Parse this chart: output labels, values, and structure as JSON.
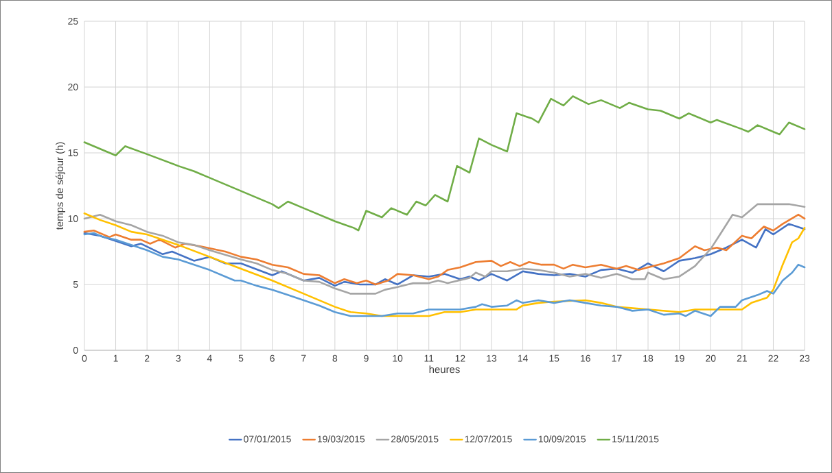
{
  "chart_data": {
    "type": "line",
    "xlabel": "heures",
    "ylabel": "temps de séjour (h)",
    "xlim": [
      0,
      23
    ],
    "ylim": [
      0,
      25
    ],
    "xticks": [
      0,
      1,
      2,
      3,
      4,
      5,
      6,
      7,
      8,
      9,
      10,
      11,
      12,
      13,
      14,
      15,
      16,
      17,
      18,
      19,
      20,
      21,
      22,
      23
    ],
    "yticks": [
      0,
      5,
      10,
      15,
      20,
      25
    ],
    "grid": true,
    "legend": "bottom",
    "line_style": "solid",
    "series": [
      {
        "name": "07/01/2015",
        "color": "#4472c4",
        "x": [
          0,
          0.5,
          1,
          1.5,
          1.8,
          2.5,
          2.8,
          3.3,
          3.5,
          4,
          4.5,
          5,
          6,
          6.3,
          7,
          7.5,
          8,
          8.3,
          8.8,
          9.3,
          9.6,
          10,
          10.5,
          11,
          11.5,
          12,
          12.3,
          12.6,
          13,
          13.5,
          14,
          14.5,
          15,
          15.5,
          16,
          16.5,
          17,
          17.5,
          18,
          18.5,
          19,
          19.5,
          20,
          20.5,
          21,
          21.45,
          21.75,
          22,
          22.5,
          23
        ],
        "values": [
          8.9,
          8.7,
          8.3,
          7.9,
          8.1,
          7.3,
          7.5,
          7.0,
          6.8,
          7.1,
          6.6,
          6.6,
          5.7,
          6.0,
          5.3,
          5.5,
          4.9,
          5.2,
          5.0,
          5.0,
          5.4,
          5.0,
          5.7,
          5.6,
          5.8,
          5.4,
          5.6,
          5.3,
          5.8,
          5.3,
          6.0,
          5.8,
          5.7,
          5.8,
          5.6,
          6.1,
          6.2,
          5.9,
          6.6,
          6.0,
          6.8,
          7.0,
          7.3,
          7.8,
          8.4,
          7.8,
          9.2,
          8.8,
          9.6,
          9.2
        ]
      },
      {
        "name": "19/03/2015",
        "color": "#ed7d31",
        "x": [
          0,
          0.3,
          0.8,
          1,
          1.5,
          1.8,
          2.1,
          2.4,
          2.9,
          3.2,
          3.7,
          4.5,
          5,
          5.5,
          6,
          6.5,
          7,
          7.5,
          8,
          8.3,
          8.7,
          9,
          9.3,
          9.7,
          10,
          10.5,
          11,
          11.3,
          11.6,
          12,
          12.5,
          13,
          13.3,
          13.6,
          13.9,
          14.2,
          14.6,
          15,
          15.3,
          15.6,
          16,
          16.5,
          17,
          17.3,
          17.7,
          18,
          18.5,
          19,
          19.5,
          19.8,
          20.2,
          20.5,
          21,
          21.3,
          21.7,
          22,
          22.3,
          22.8,
          23
        ],
        "values": [
          9.0,
          9.1,
          8.6,
          8.8,
          8.4,
          8.4,
          8.1,
          8.4,
          7.8,
          8.1,
          7.9,
          7.5,
          7.1,
          6.9,
          6.5,
          6.3,
          5.8,
          5.7,
          5.1,
          5.4,
          5.1,
          5.3,
          5.0,
          5.3,
          5.8,
          5.7,
          5.4,
          5.6,
          6.1,
          6.3,
          6.7,
          6.8,
          6.4,
          6.7,
          6.4,
          6.7,
          6.5,
          6.5,
          6.2,
          6.5,
          6.3,
          6.5,
          6.2,
          6.4,
          6.1,
          6.3,
          6.6,
          7.0,
          7.9,
          7.6,
          7.8,
          7.6,
          8.7,
          8.5,
          9.4,
          9.1,
          9.6,
          10.3,
          10.0
        ]
      },
      {
        "name": "28/05/2015",
        "color": "#a5a5a5",
        "x": [
          0,
          0.5,
          1,
          1.5,
          2,
          2.5,
          3,
          3.5,
          4,
          5,
          5.5,
          6,
          6.5,
          7,
          7.5,
          8,
          8.5,
          9,
          9.3,
          9.6,
          10,
          10.5,
          11,
          11.3,
          11.6,
          12.3,
          12.5,
          12.8,
          13,
          13.5,
          14,
          14.5,
          15,
          15.5,
          16,
          16.5,
          17,
          17.5,
          17.9,
          18,
          18.5,
          19,
          19.5,
          20,
          20.3,
          20.7,
          21,
          21.5,
          22,
          22.5,
          23
        ],
        "values": [
          10.0,
          10.3,
          9.8,
          9.5,
          9.0,
          8.7,
          8.2,
          8.0,
          7.6,
          6.9,
          6.6,
          6.1,
          5.8,
          5.3,
          5.2,
          4.7,
          4.3,
          4.3,
          4.3,
          4.6,
          4.8,
          5.1,
          5.1,
          5.3,
          5.1,
          5.5,
          5.9,
          5.6,
          6.0,
          6.0,
          6.2,
          6.1,
          5.9,
          5.6,
          5.8,
          5.5,
          5.8,
          5.4,
          5.4,
          5.9,
          5.4,
          5.6,
          6.4,
          7.7,
          8.8,
          10.3,
          10.1,
          11.1,
          11.1,
          11.1,
          10.9
        ]
      },
      {
        "name": "12/07/2015",
        "color": "#ffc000",
        "x": [
          0,
          0.5,
          1,
          1.5,
          2,
          3,
          4,
          5,
          6,
          7,
          8,
          8.5,
          9,
          9.5,
          10,
          11,
          11.5,
          12,
          12.5,
          13,
          13.8,
          14,
          14.5,
          15,
          16,
          16.5,
          17,
          18,
          19,
          19.5,
          20,
          21,
          21.3,
          21.8,
          22,
          22.3,
          22.6,
          22.8,
          23
        ],
        "values": [
          10.4,
          9.9,
          9.5,
          9.0,
          8.8,
          8.0,
          7.1,
          6.2,
          5.3,
          4.3,
          3.3,
          2.9,
          2.8,
          2.6,
          2.6,
          2.6,
          2.9,
          2.9,
          3.1,
          3.1,
          3.1,
          3.4,
          3.6,
          3.7,
          3.8,
          3.6,
          3.3,
          3.1,
          2.9,
          3.1,
          3.1,
          3.1,
          3.6,
          4.0,
          4.6,
          6.5,
          8.2,
          8.5,
          9.3
        ]
      },
      {
        "name": "10/09/2015",
        "color": "#5b9bd5",
        "x": [
          0,
          0.3,
          0.6,
          1,
          1.5,
          2,
          2.5,
          3,
          3.5,
          4,
          4.5,
          4.8,
          5,
          5.5,
          6,
          6.5,
          7,
          7.5,
          8,
          8.5,
          9,
          9.5,
          10,
          10.5,
          11,
          11.5,
          12,
          12.5,
          12.7,
          13,
          13.5,
          13.8,
          14,
          14.5,
          15,
          15.5,
          16,
          16.5,
          17,
          17.5,
          18,
          18.5,
          19,
          19.2,
          19.5,
          20,
          20.3,
          20.8,
          21,
          21.5,
          21.8,
          22,
          22.3,
          22.6,
          22.8,
          23
        ],
        "values": [
          8.8,
          8.9,
          8.6,
          8.4,
          8.0,
          7.6,
          7.1,
          6.9,
          6.5,
          6.1,
          5.6,
          5.3,
          5.3,
          4.9,
          4.6,
          4.2,
          3.8,
          3.4,
          2.9,
          2.6,
          2.6,
          2.6,
          2.8,
          2.8,
          3.1,
          3.1,
          3.1,
          3.3,
          3.5,
          3.3,
          3.4,
          3.8,
          3.6,
          3.8,
          3.6,
          3.8,
          3.6,
          3.4,
          3.3,
          3.0,
          3.1,
          2.7,
          2.8,
          2.6,
          3.0,
          2.6,
          3.3,
          3.3,
          3.8,
          4.2,
          4.5,
          4.3,
          5.3,
          5.9,
          6.5,
          6.3
        ]
      },
      {
        "name": "15/11/2015",
        "color": "#70ad47",
        "x": [
          0,
          0.5,
          1,
          1.3,
          2,
          3,
          3.5,
          4,
          5,
          6,
          6.2,
          6.5,
          7,
          8,
          8.6,
          8.75,
          9,
          9.5,
          9.8,
          10.3,
          10.6,
          10.9,
          11.2,
          11.6,
          11.9,
          12.3,
          12.6,
          13,
          13.5,
          13.8,
          14.3,
          14.5,
          14.9,
          15.3,
          15.6,
          16.1,
          16.5,
          17.1,
          17.4,
          18,
          18.4,
          19,
          19.3,
          20,
          20.2,
          21,
          21.2,
          21.5,
          22,
          22.2,
          22.5,
          23
        ],
        "values": [
          15.8,
          15.3,
          14.8,
          15.5,
          14.9,
          14.0,
          13.6,
          13.1,
          12.1,
          11.1,
          10.8,
          11.3,
          10.8,
          9.8,
          9.3,
          9.1,
          10.6,
          10.1,
          10.8,
          10.3,
          11.3,
          11.0,
          11.8,
          11.3,
          14.0,
          13.5,
          16.1,
          15.6,
          15.1,
          18.0,
          17.6,
          17.3,
          19.1,
          18.6,
          19.3,
          18.7,
          19.0,
          18.4,
          18.8,
          18.3,
          18.2,
          17.6,
          18.0,
          17.3,
          17.5,
          16.8,
          16.6,
          17.1,
          16.6,
          16.4,
          17.3,
          16.8
        ]
      }
    ]
  }
}
